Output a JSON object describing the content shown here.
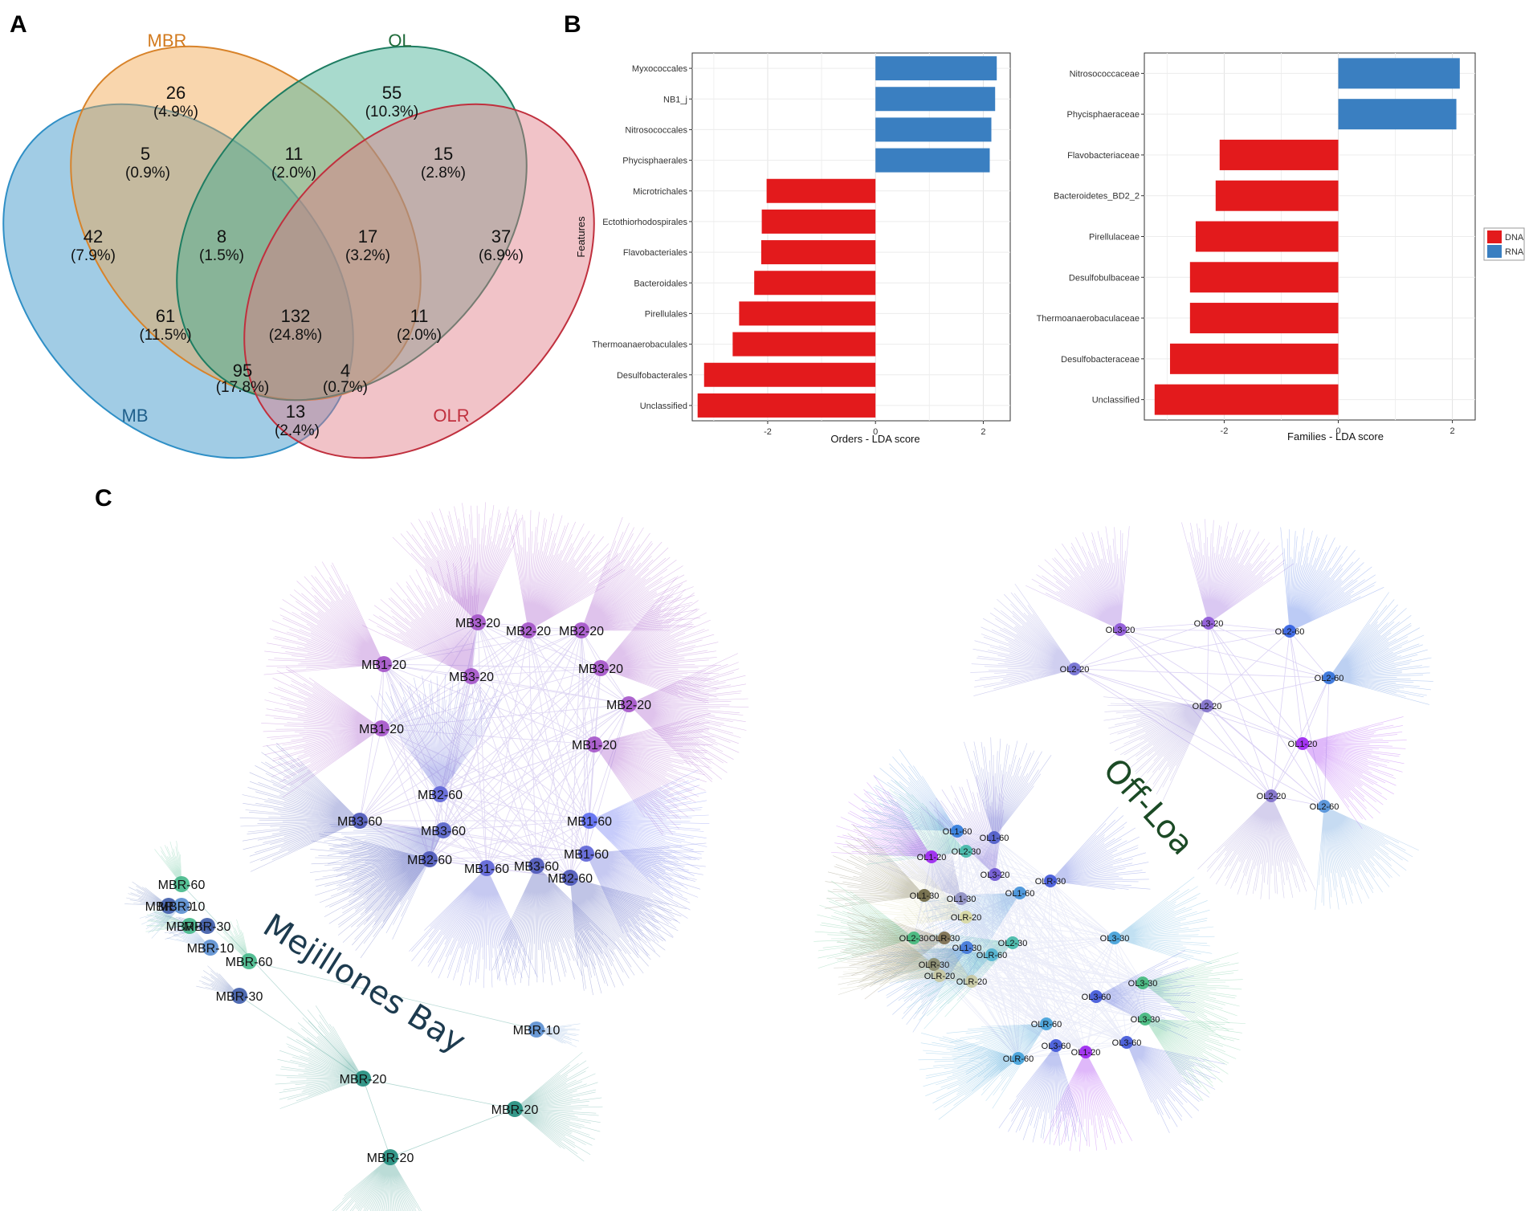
{
  "panels": {
    "a": "A",
    "b": "B",
    "c": "C"
  },
  "venn": {
    "sets": [
      {
        "name": "MB",
        "color": "#2f8fc6",
        "label_color": "#1f5f8b"
      },
      {
        "name": "MBR",
        "color": "#f2a54a",
        "label_color": "#d27a1e"
      },
      {
        "name": "OL",
        "color": "#3fae91",
        "label_color": "#1f6b3a"
      },
      {
        "name": "OLR",
        "color": "#e07b86",
        "label_color": "#c0303e"
      }
    ],
    "regions": [
      {
        "id": "mbr-only",
        "count": "26",
        "pct": "(4.9%)"
      },
      {
        "id": "ol-only",
        "count": "55",
        "pct": "(10.3%)"
      },
      {
        "id": "mb-mbr",
        "count": "5",
        "pct": "(0.9%)"
      },
      {
        "id": "mbr-ol",
        "count": "11",
        "pct": "(2.0%)"
      },
      {
        "id": "ol-olr",
        "count": "15",
        "pct": "(2.8%)"
      },
      {
        "id": "mb-only",
        "count": "42",
        "pct": "(7.9%)"
      },
      {
        "id": "mb-mbr-ol",
        "count": "8",
        "pct": "(1.5%)"
      },
      {
        "id": "mbr-ol-olr",
        "count": "17",
        "pct": "(3.2%)"
      },
      {
        "id": "olr-only",
        "count": "37",
        "pct": "(6.9%)"
      },
      {
        "id": "mb-ol",
        "count": "61",
        "pct": "(11.5%)"
      },
      {
        "id": "all",
        "count": "132",
        "pct": "(24.8%)"
      },
      {
        "id": "mbr-olr",
        "count": "11",
        "pct": "(2.0%)"
      },
      {
        "id": "mb-ol-olr",
        "count": "95",
        "pct": "(17.8%)"
      },
      {
        "id": "mb-mbr-olr",
        "count": "4",
        "pct": "(0.7%)"
      },
      {
        "id": "mb-olr",
        "count": "13",
        "pct": "(2.4%)"
      }
    ]
  },
  "chart_data": [
    {
      "type": "bar",
      "orientation": "horizontal",
      "title": "",
      "xlabel": "Orders - LDA score",
      "ylabel": "Features",
      "xlim": [
        -3.4,
        2.5
      ],
      "xticks": [
        -2,
        0,
        2
      ],
      "categories": [
        "Myxococcales",
        "NB1_j",
        "Nitrosococcales",
        "Phycisphaerales",
        "Microtrichales",
        "Ectothiorhodospirales",
        "Flavobacteriales",
        "Bacteroidales",
        "Pirellulales",
        "Thermoanaerobaculales",
        "Desulfobacterales",
        "Unclassified"
      ],
      "values": [
        2.25,
        2.22,
        2.15,
        2.12,
        -2.02,
        -2.11,
        -2.12,
        -2.25,
        -2.53,
        -2.65,
        -3.18,
        -3.3
      ],
      "groups": [
        "RNA",
        "RNA",
        "RNA",
        "RNA",
        "DNA",
        "DNA",
        "DNA",
        "DNA",
        "DNA",
        "DNA",
        "DNA",
        "DNA"
      ]
    },
    {
      "type": "bar",
      "orientation": "horizontal",
      "title": "",
      "xlabel": "Families - LDA score",
      "ylabel": "",
      "xlim": [
        -3.4,
        2.4
      ],
      "xticks": [
        -2,
        0,
        2
      ],
      "categories": [
        "Nitrosococcaceae",
        "Phycisphaeraceae",
        "Flavobacteriaceae",
        "Bacteroidetes_BD2_2",
        "Pirellulaceae",
        "Desulfobulbaceae",
        "Thermoanaerobaculaceae",
        "Desulfobacteraceae",
        "Unclassified"
      ],
      "values": [
        2.13,
        2.07,
        -2.08,
        -2.15,
        -2.5,
        -2.6,
        -2.6,
        -2.95,
        -3.22
      ],
      "groups": [
        "RNA",
        "RNA",
        "DNA",
        "DNA",
        "DNA",
        "DNA",
        "DNA",
        "DNA",
        "DNA"
      ]
    }
  ],
  "legend": {
    "entries": [
      {
        "label": "DNA",
        "color": "#e31a1c"
      },
      {
        "label": "RNA",
        "color": "#3a7fc1"
      }
    ]
  },
  "network": {
    "regions": [
      {
        "id": "mejillones",
        "label": "Mejillones Bay",
        "color": "#1d3b4f"
      },
      {
        "id": "offloa",
        "label": "Off-Loa",
        "color": "#1b4a25"
      }
    ],
    "mejillones_nodes": [
      "MB3-20",
      "MB2-20",
      "MB2-20",
      "MB1-20",
      "MB3-20",
      "MB3-20",
      "MB2-20",
      "MB1-20",
      "MB1-20",
      "MB2-60",
      "MB3-60",
      "MB1-60",
      "MB3-60",
      "MB1-60",
      "MB2-60",
      "MB1-60",
      "MB3-60",
      "MB2-60",
      "MBR-60",
      "MBR-30",
      "MBR-10",
      "MBR-60",
      "MBR-30",
      "MBR-10",
      "MBR-60",
      "MBR-30",
      "MBR-10",
      "MBR-20",
      "MBR-20",
      "MBR-20"
    ],
    "offloa_nodes": [
      "OL3-20",
      "OL3-20",
      "OL2-60",
      "OL2-20",
      "OL2-60",
      "OL2-20",
      "OL1-20",
      "OL2-20",
      "OL2-60",
      "OL1-60",
      "OL1-60",
      "OL2-30",
      "OL1-20",
      "OL3-20",
      "OLR-30",
      "OL1-30",
      "OL1-30",
      "OL1-60",
      "OLR-20",
      "OL2-30",
      "OLR-30",
      "OL3-30",
      "OL2-30",
      "OL1-30",
      "OLR-60",
      "OLR-30",
      "OLR-20",
      "OLR-20",
      "OL3-30",
      "OL3-60",
      "OLR-60",
      "OL3-30",
      "OLR-60",
      "OL3-60",
      "OL1-20",
      "OL3-60"
    ]
  }
}
